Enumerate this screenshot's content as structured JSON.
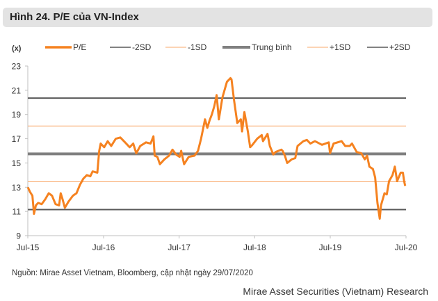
{
  "title": "Hình 24. P/E của VN-Index",
  "source": "Nguồn:  Mirae Asset Vietnam, Bloomberg, cập nhật ngày 29/07/2020",
  "research": "Mirae Asset Securities (Vietnam) Research",
  "colors": {
    "pe": "#f58220",
    "sd2": "#595959",
    "sd1": "#f9a86a",
    "mean": "#808080"
  },
  "chart_data": {
    "type": "line",
    "ylabel": "(x)",
    "ylim": [
      9,
      23
    ],
    "yticks": [
      "9",
      "11",
      "13",
      "15",
      "17",
      "19",
      "21",
      "23"
    ],
    "xlim": [
      "2015-07-01",
      "2020-07-01"
    ],
    "xticks": [
      {
        "date": "2015-07-01",
        "label": "Jul-15"
      },
      {
        "date": "2016-07-01",
        "label": "Jul-16"
      },
      {
        "date": "2017-07-01",
        "label": "Jul-17"
      },
      {
        "date": "2018-07-01",
        "label": "Jul-18"
      },
      {
        "date": "2019-07-01",
        "label": "Jul-19"
      },
      {
        "date": "2020-07-01",
        "label": "Jul-20"
      }
    ],
    "grid": false,
    "legend_position": "top",
    "series": [
      {
        "name": "P/E",
        "color": "#f58220",
        "points": [
          [
            "2015-07-01",
            13.0
          ],
          [
            "2015-07-12",
            12.6
          ],
          [
            "2015-07-23",
            12.3
          ],
          [
            "2015-07-31",
            10.8
          ],
          [
            "2015-08-09",
            11.5
          ],
          [
            "2015-08-20",
            11.7
          ],
          [
            "2015-09-06",
            11.6
          ],
          [
            "2015-09-23",
            12.0
          ],
          [
            "2015-10-10",
            12.5
          ],
          [
            "2015-10-26",
            12.3
          ],
          [
            "2015-11-12",
            11.6
          ],
          [
            "2015-11-29",
            11.5
          ],
          [
            "2015-12-07",
            12.5
          ],
          [
            "2015-12-16",
            12.0
          ],
          [
            "2015-12-27",
            11.3
          ],
          [
            "2016-01-13",
            11.8
          ],
          [
            "2016-02-04",
            12.3
          ],
          [
            "2016-02-21",
            12.5
          ],
          [
            "2016-03-09",
            13.2
          ],
          [
            "2016-03-25",
            13.7
          ],
          [
            "2016-04-11",
            14.0
          ],
          [
            "2016-04-28",
            13.9
          ],
          [
            "2016-05-09",
            14.3
          ],
          [
            "2016-06-01",
            14.2
          ],
          [
            "2016-06-10",
            16.0
          ],
          [
            "2016-06-17",
            16.6
          ],
          [
            "2016-07-04",
            16.3
          ],
          [
            "2016-07-21",
            16.8
          ],
          [
            "2016-08-07",
            16.4
          ],
          [
            "2016-08-29",
            17.0
          ],
          [
            "2016-09-20",
            17.1
          ],
          [
            "2016-10-13",
            16.7
          ],
          [
            "2016-11-04",
            16.3
          ],
          [
            "2016-11-21",
            16.6
          ],
          [
            "2016-12-06",
            15.8
          ],
          [
            "2016-12-25",
            16.4
          ],
          [
            "2017-01-22",
            16.7
          ],
          [
            "2017-02-13",
            16.6
          ],
          [
            "2017-02-27",
            17.2
          ],
          [
            "2017-03-05",
            15.6
          ],
          [
            "2017-03-18",
            15.5
          ],
          [
            "2017-03-30",
            14.9
          ],
          [
            "2017-04-21",
            15.3
          ],
          [
            "2017-05-13",
            15.6
          ],
          [
            "2017-05-30",
            16.1
          ],
          [
            "2017-06-16",
            15.7
          ],
          [
            "2017-07-03",
            15.5
          ],
          [
            "2017-07-11",
            16.0
          ],
          [
            "2017-07-25",
            14.9
          ],
          [
            "2017-08-16",
            15.5
          ],
          [
            "2017-09-13",
            15.6
          ],
          [
            "2017-09-30",
            16.0
          ],
          [
            "2017-10-15",
            17.0
          ],
          [
            "2017-11-03",
            18.6
          ],
          [
            "2017-11-14",
            17.9
          ],
          [
            "2017-11-25",
            18.5
          ],
          [
            "2017-12-06",
            19.0
          ],
          [
            "2017-12-18",
            19.7
          ],
          [
            "2017-12-29",
            20.6
          ],
          [
            "2018-01-09",
            18.6
          ],
          [
            "2018-01-26",
            20.4
          ],
          [
            "2018-02-17",
            21.7
          ],
          [
            "2018-03-06",
            22.0
          ],
          [
            "2018-03-11",
            21.9
          ],
          [
            "2018-03-23",
            20.2
          ],
          [
            "2018-04-08",
            18.3
          ],
          [
            "2018-04-25",
            18.6
          ],
          [
            "2018-05-01",
            17.6
          ],
          [
            "2018-05-12",
            19.2
          ],
          [
            "2018-05-29",
            17.6
          ],
          [
            "2018-06-09",
            16.3
          ],
          [
            "2018-06-20",
            16.5
          ],
          [
            "2018-07-13",
            17.0
          ],
          [
            "2018-08-04",
            17.3
          ],
          [
            "2018-08-10",
            16.8
          ],
          [
            "2018-09-01",
            17.4
          ],
          [
            "2018-09-12",
            16.4
          ],
          [
            "2018-09-29",
            15.7
          ],
          [
            "2018-10-10",
            15.9
          ],
          [
            "2018-11-07",
            16.1
          ],
          [
            "2018-11-13",
            16.0
          ],
          [
            "2018-11-24",
            15.6
          ],
          [
            "2018-12-05",
            15.0
          ],
          [
            "2018-12-27",
            15.3
          ],
          [
            "2019-01-13",
            15.4
          ],
          [
            "2019-01-24",
            16.4
          ],
          [
            "2019-02-21",
            16.8
          ],
          [
            "2019-03-10",
            16.9
          ],
          [
            "2019-03-27",
            16.6
          ],
          [
            "2019-04-18",
            16.8
          ],
          [
            "2019-05-22",
            16.5
          ],
          [
            "2019-06-24",
            16.7
          ],
          [
            "2019-06-30",
            15.8
          ],
          [
            "2019-07-17",
            16.6
          ],
          [
            "2019-08-25",
            16.8
          ],
          [
            "2019-09-11",
            16.4
          ],
          [
            "2019-10-03",
            16.4
          ],
          [
            "2019-10-14",
            16.6
          ],
          [
            "2019-11-06",
            15.9
          ],
          [
            "2019-11-28",
            15.8
          ],
          [
            "2019-12-15",
            15.3
          ],
          [
            "2019-12-26",
            15.6
          ],
          [
            "2020-01-06",
            14.7
          ],
          [
            "2020-01-23",
            14.5
          ],
          [
            "2020-02-03",
            13.8
          ],
          [
            "2020-02-14",
            11.7
          ],
          [
            "2020-02-25",
            10.4
          ],
          [
            "2020-03-02",
            11.5
          ],
          [
            "2020-03-19",
            12.5
          ],
          [
            "2020-03-30",
            12.4
          ],
          [
            "2020-04-10",
            13.5
          ],
          [
            "2020-04-27",
            14.0
          ],
          [
            "2020-05-08",
            14.7
          ],
          [
            "2020-05-19",
            13.5
          ],
          [
            "2020-06-05",
            14.2
          ],
          [
            "2020-06-16",
            14.2
          ],
          [
            "2020-06-22",
            13.5
          ],
          [
            "2020-06-27",
            13.1
          ]
        ]
      },
      {
        "name": "-2SD",
        "color": "#595959",
        "value": 11.15
      },
      {
        "name": "-1SD",
        "color": "#f9a86a",
        "value": 13.45
      },
      {
        "name": "Trung bình",
        "color": "#808080",
        "value": 15.75
      },
      {
        "name": "+1SD",
        "color": "#f9a86a",
        "value": 18.05
      },
      {
        "name": "+2SD",
        "color": "#595959",
        "value": 20.35
      }
    ]
  }
}
